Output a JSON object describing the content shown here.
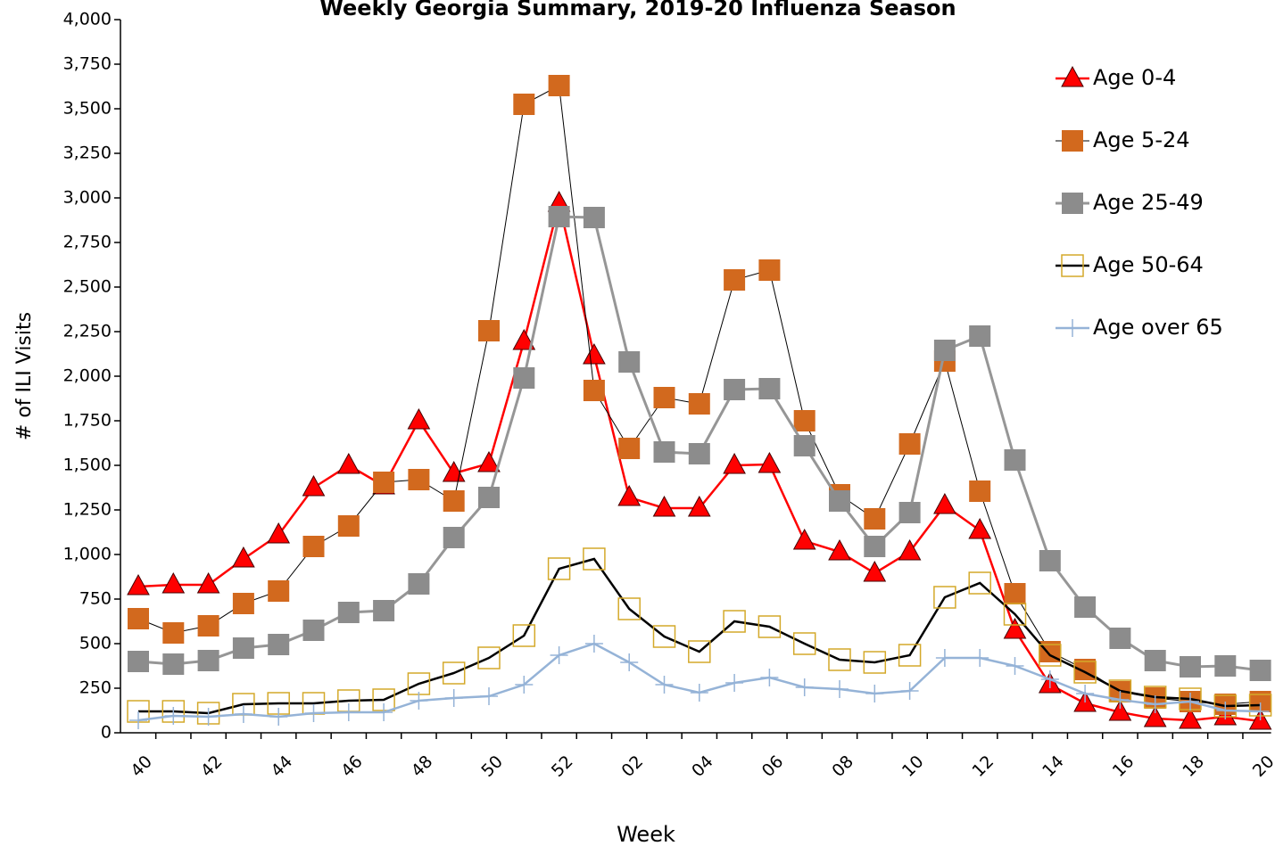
{
  "chart_data": {
    "type": "line",
    "title": "Weekly Georgia Summary, 2019-20 Influenza Season",
    "x_label": "Week",
    "y_label": "# of ILI Visits",
    "categories": [
      "40",
      null,
      "42",
      null,
      "44",
      null,
      "46",
      null,
      "48",
      null,
      "50",
      null,
      "52",
      null,
      "02",
      null,
      "04",
      null,
      "06",
      null,
      "08",
      null,
      "10",
      null,
      "12",
      null,
      "14",
      null,
      "16",
      null,
      "18",
      null,
      "20"
    ],
    "ylim": [
      0,
      4000
    ],
    "yticks": [
      0,
      250,
      500,
      750,
      {
        "value": 1000,
        "label": "1,000"
      },
      {
        "value": 1250,
        "label": "1,250"
      },
      {
        "value": 1500,
        "label": "1,500"
      },
      {
        "value": 1750,
        "label": "1,750"
      },
      {
        "value": 2000,
        "label": "2,000"
      },
      {
        "value": 2250,
        "label": "2,250"
      },
      {
        "value": 2500,
        "label": "2,500"
      },
      {
        "value": 2750,
        "label": "2,750"
      },
      {
        "value": 3000,
        "label": "3,000"
      },
      {
        "value": 3250,
        "label": "3,250"
      },
      {
        "value": 3500,
        "label": "3,500"
      },
      {
        "value": 3750,
        "label": "3,750"
      },
      {
        "value": 4000,
        "label": "4,000"
      }
    ],
    "legend": "right",
    "series": [
      {
        "name": "Age 0-4",
        "color": "#ff0000",
        "marker": "triangle",
        "marker_color": "#ff0000",
        "values": [
          820,
          830,
          830,
          975,
          1110,
          1375,
          1500,
          1385,
          1750,
          1455,
          1510,
          2195,
          2970,
          2115,
          1320,
          1260,
          1260,
          1500,
          1505,
          1075,
          1015,
          895,
          1015,
          1275,
          1135,
          575,
          270,
          165,
          115,
          80,
          70,
          90,
          65
        ]
      },
      {
        "name": "Age 5-24",
        "color": "#000000",
        "marker": "square",
        "marker_color": "#d2691e",
        "values": [
          640,
          560,
          600,
          725,
          795,
          1045,
          1160,
          1405,
          1420,
          1300,
          2255,
          3525,
          3630,
          1920,
          1595,
          1880,
          1845,
          2540,
          2595,
          1750,
          1335,
          1200,
          1620,
          2085,
          1355,
          780,
          455,
          355,
          230,
          195,
          175,
          160,
          175
        ]
      },
      {
        "name": "Age 25-49",
        "color": "#969696",
        "marker": "square",
        "marker_color": "#8c8c8c",
        "values": [
          400,
          385,
          405,
          475,
          495,
          575,
          675,
          685,
          835,
          1095,
          1320,
          1990,
          2895,
          2890,
          2080,
          1575,
          1565,
          1925,
          1930,
          1610,
          1300,
          1045,
          1235,
          2145,
          2225,
          1530,
          965,
          705,
          530,
          405,
          370,
          375,
          350
        ]
      },
      {
        "name": "Age 50-64",
        "color": "#000000",
        "marker": "hollow-square",
        "marker_color": "#d4a92a",
        "values": [
          120,
          120,
          110,
          160,
          165,
          165,
          180,
          185,
          275,
          335,
          420,
          545,
          920,
          975,
          695,
          540,
          455,
          625,
          595,
          500,
          410,
          395,
          435,
          760,
          840,
          665,
          435,
          340,
          235,
          200,
          190,
          150,
          155
        ]
      },
      {
        "name": "Age over 65",
        "color": "#95b3d7",
        "marker": "plus",
        "marker_color": "#95b3d7",
        "values": [
          70,
          95,
          90,
          105,
          90,
          110,
          115,
          115,
          180,
          195,
          205,
          270,
          435,
          500,
          395,
          270,
          225,
          280,
          310,
          255,
          245,
          220,
          235,
          420,
          420,
          375,
          300,
          220,
          185,
          160,
          175,
          125,
          120
        ]
      }
    ]
  }
}
